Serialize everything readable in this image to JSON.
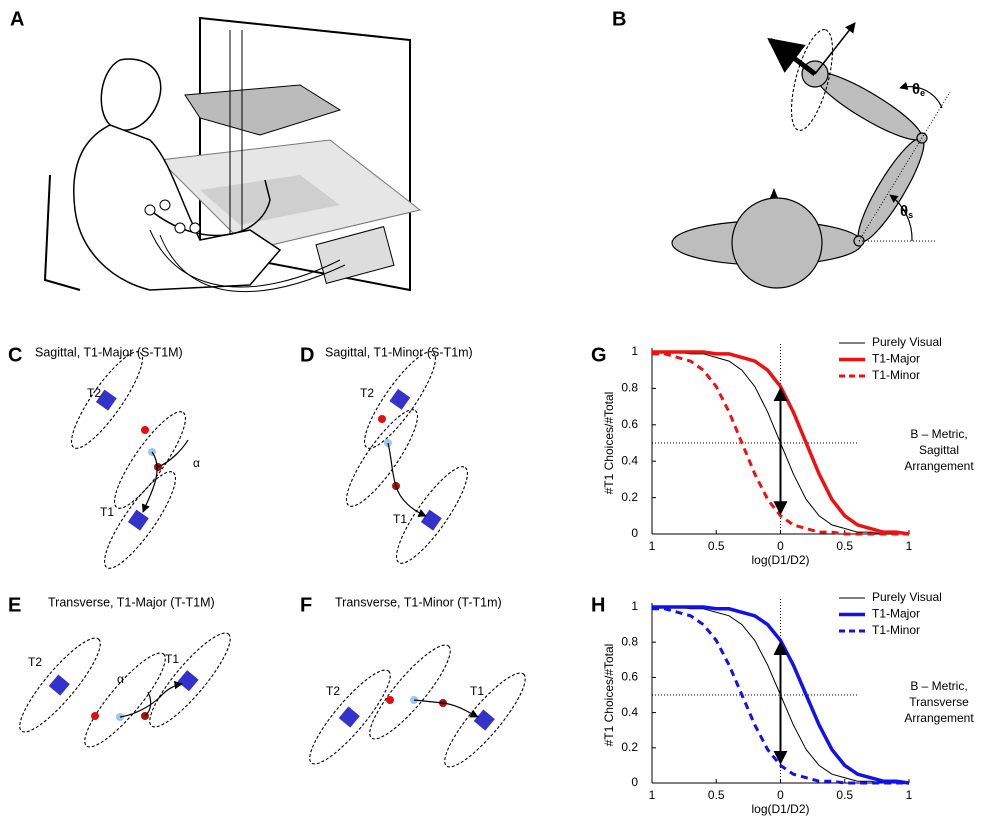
{
  "figure": {
    "panel_labels": [
      "A",
      "B",
      "C",
      "D",
      "E",
      "F",
      "G",
      "H"
    ],
    "angles": [
      {
        "symbol": "θ",
        "subscript": "e"
      },
      {
        "symbol": "θ",
        "subscript": "s"
      }
    ],
    "diagrams": [
      {
        "title": "Sagittal, T1-Major (S-T1M)",
        "labels": [
          "T2",
          "T1",
          "α"
        ]
      },
      {
        "title": "Sagittal, T1-Minor (S-T1m)",
        "labels": [
          "T2",
          "T1"
        ]
      },
      {
        "title": "Transverse, T1-Major (T-T1M)",
        "labels": [
          "T2",
          "T1",
          "α"
        ]
      },
      {
        "title": "Transverse, T1-Minor (T-T1m)",
        "labels": [
          "T2",
          "T1"
        ]
      }
    ]
  },
  "chart_data": [
    {
      "type": "line",
      "xlabel": "log(D1/D2)",
      "ylabel": "#T1 Choices/#Total",
      "annotation": [
        "B – Metric,",
        "Sagittal",
        "Arrangement"
      ],
      "x": [
        -1,
        -0.9,
        -0.8,
        -0.7,
        -0.6,
        -0.5,
        -0.4,
        -0.3,
        -0.2,
        -0.1,
        0,
        0.1,
        0.2,
        0.3,
        0.4,
        0.5,
        0.6,
        0.7,
        0.8,
        0.9,
        1
      ],
      "series": [
        {
          "name": "Purely Visual",
          "color": "#000000",
          "dash": false,
          "line_width": 1,
          "values": [
            1,
            1,
            1,
            0.99,
            0.99,
            0.97,
            0.95,
            0.9,
            0.81,
            0.67,
            0.5,
            0.33,
            0.19,
            0.1,
            0.05,
            0.03,
            0.01,
            0.01,
            0,
            0,
            0
          ]
        },
        {
          "name": "T1-Major",
          "color": "#ee1111",
          "dash": false,
          "line_width": 3.5,
          "values": [
            1,
            1,
            1,
            1,
            1,
            0.99,
            0.99,
            0.97,
            0.95,
            0.9,
            0.81,
            0.67,
            0.5,
            0.33,
            0.19,
            0.1,
            0.05,
            0.03,
            0.01,
            0.01,
            0
          ]
        },
        {
          "name": "T1-Minor",
          "color": "#ee1111",
          "dash": true,
          "line_width": 3,
          "values": [
            0.99,
            0.99,
            0.97,
            0.95,
            0.9,
            0.81,
            0.67,
            0.5,
            0.33,
            0.19,
            0.1,
            0.05,
            0.03,
            0.01,
            0.01,
            0,
            0,
            0,
            0,
            0,
            0
          ]
        }
      ],
      "xlim": [
        -1,
        1
      ],
      "xticks": [
        {
          "value": -1,
          "label": "1"
        },
        {
          "value": -0.5,
          "label": "0.5"
        },
        0,
        0.5,
        1
      ],
      "ylim": [
        0,
        1
      ],
      "yticks": [
        0,
        0.2,
        0.4,
        0.6,
        0.8,
        1
      ],
      "hline": 0.5,
      "vline": 0
    },
    {
      "type": "line",
      "xlabel": "log(D1/D2)",
      "ylabel": "#T1 Choices/#Total",
      "annotation": [
        "B – Metric,",
        "Transverse",
        "Arrangement"
      ],
      "x": [
        -1,
        -0.9,
        -0.8,
        -0.7,
        -0.6,
        -0.5,
        -0.4,
        -0.3,
        -0.2,
        -0.1,
        0,
        0.1,
        0.2,
        0.3,
        0.4,
        0.5,
        0.6,
        0.7,
        0.8,
        0.9,
        1
      ],
      "series": [
        {
          "name": "Purely Visual",
          "color": "#000000",
          "dash": false,
          "line_width": 1,
          "values": [
            1,
            1,
            1,
            0.99,
            0.99,
            0.97,
            0.95,
            0.9,
            0.81,
            0.67,
            0.5,
            0.33,
            0.19,
            0.1,
            0.05,
            0.03,
            0.01,
            0.01,
            0,
            0,
            0
          ]
        },
        {
          "name": "T1-Major",
          "color": "#1111ee",
          "dash": false,
          "line_width": 3.5,
          "values": [
            1,
            1,
            1,
            1,
            1,
            0.99,
            0.99,
            0.97,
            0.95,
            0.9,
            0.81,
            0.67,
            0.5,
            0.33,
            0.19,
            0.1,
            0.05,
            0.03,
            0.01,
            0.01,
            0
          ]
        },
        {
          "name": "T1-Minor",
          "color": "#1111ee",
          "dash": true,
          "line_width": 3,
          "values": [
            0.99,
            0.99,
            0.97,
            0.95,
            0.9,
            0.81,
            0.67,
            0.5,
            0.33,
            0.19,
            0.1,
            0.05,
            0.03,
            0.01,
            0.01,
            0,
            0,
            0,
            0,
            0,
            0
          ]
        }
      ],
      "xlim": [
        -1,
        1
      ],
      "xticks": [
        {
          "value": -1,
          "label": "1"
        },
        {
          "value": -0.5,
          "label": "0.5"
        },
        0,
        0.5,
        1
      ],
      "ylim": [
        0,
        1
      ],
      "yticks": [
        0,
        0.2,
        0.4,
        0.6,
        0.8,
        1
      ],
      "hline": 0.5,
      "vline": 0
    }
  ]
}
